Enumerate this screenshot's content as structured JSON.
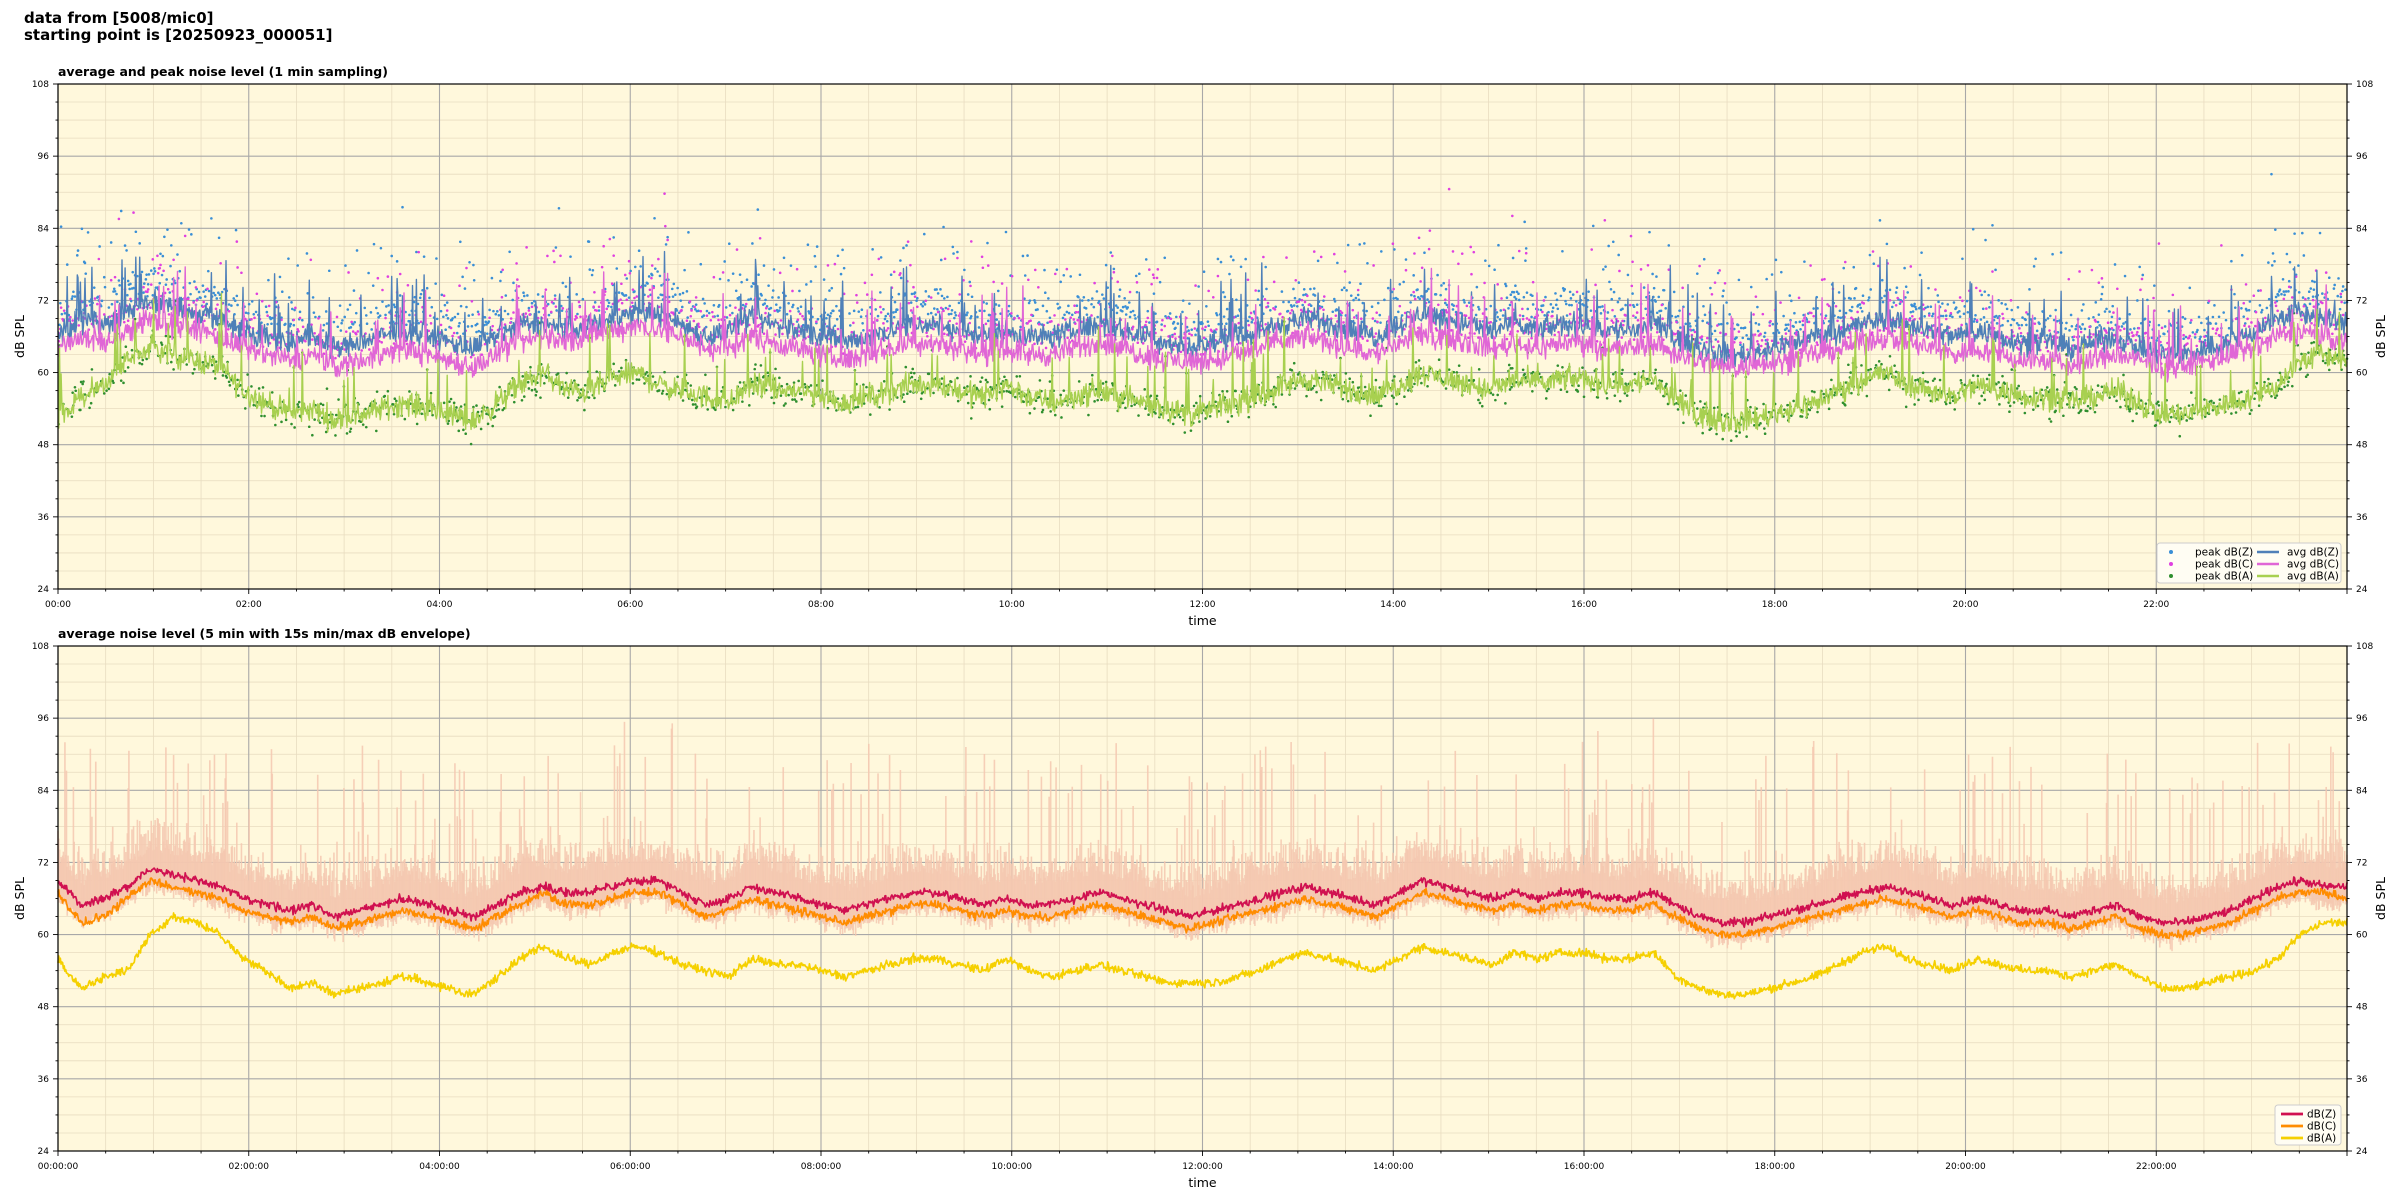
{
  "header": {
    "line1": "data from [5008/mic0]",
    "line2": "starting point is [20250923_000051]"
  },
  "chart_data": [
    {
      "type": "line",
      "title": "average and peak noise level (1 min sampling)",
      "xlabel": "time",
      "ylabel": "dB SPL",
      "ylim": [
        24,
        108
      ],
      "xlim_hours": [
        0,
        24
      ],
      "x_tick_labels": [
        "00:00",
        "02:00",
        "04:00",
        "06:00",
        "08:00",
        "10:00",
        "12:00",
        "14:00",
        "16:00",
        "18:00",
        "20:00",
        "22:00"
      ],
      "y_ticks": [
        24,
        36,
        48,
        60,
        72,
        84,
        96,
        108
      ],
      "grid": true,
      "legend_position": "bottom-right",
      "sampling_minutes": 1,
      "series_style": "avg lines plus peak dots",
      "series": [
        {
          "name": "peak dB(Z)",
          "kind": "scatter",
          "color": "#3a8fd6"
        },
        {
          "name": "peak dB(C)",
          "kind": "scatter",
          "color": "#e040e0"
        },
        {
          "name": "peak dB(A)",
          "kind": "scatter",
          "color": "#2f8f2f"
        },
        {
          "name": "avg dB(Z)",
          "kind": "line",
          "color": "#4f80b8",
          "values_half_hourly": [
            66,
            69,
            68,
            70,
            72,
            71,
            70,
            69,
            67,
            66,
            65,
            66,
            64,
            65,
            66,
            67,
            66,
            65,
            64,
            66,
            68,
            68,
            67,
            68,
            69,
            70,
            70,
            68,
            66,
            67,
            69,
            68,
            67,
            66,
            65,
            66,
            67,
            68,
            68,
            67,
            66,
            67,
            66,
            66,
            67,
            68,
            67,
            66,
            65,
            64,
            65,
            66,
            67,
            68,
            69,
            68,
            67,
            66,
            68,
            70,
            69,
            68,
            67,
            68,
            67,
            68,
            68,
            67,
            67,
            68,
            66,
            64,
            63,
            63,
            64,
            65,
            66,
            67,
            68,
            69,
            68,
            67,
            66,
            67,
            66,
            65,
            65,
            64,
            65,
            66,
            64,
            63,
            63,
            64,
            65,
            67,
            69,
            70,
            69,
            68
          ]
        },
        {
          "name": "avg dB(C)",
          "kind": "line",
          "color": "#e066d6",
          "values_half_hourly": [
            64,
            66,
            65,
            67,
            69,
            68,
            67,
            66,
            64,
            63,
            62,
            63,
            61,
            62,
            63,
            64,
            63,
            62,
            61,
            63,
            65,
            66,
            65,
            66,
            67,
            68,
            67,
            66,
            64,
            64,
            66,
            65,
            64,
            63,
            62,
            63,
            64,
            65,
            65,
            64,
            63,
            64,
            63,
            63,
            64,
            65,
            64,
            63,
            62,
            62,
            62,
            63,
            64,
            65,
            66,
            65,
            64,
            63,
            65,
            66,
            66,
            65,
            64,
            65,
            64,
            65,
            65,
            64,
            64,
            65,
            63,
            62,
            61,
            61,
            62,
            62,
            63,
            64,
            65,
            66,
            65,
            64,
            63,
            64,
            63,
            62,
            62,
            61,
            62,
            63,
            62,
            61,
            61,
            62,
            63,
            64,
            66,
            67,
            66,
            65
          ]
        },
        {
          "name": "avg dB(A)",
          "kind": "line",
          "color": "#a8d050",
          "values_half_hourly": [
            53,
            56,
            58,
            62,
            64,
            63,
            62,
            61,
            57,
            55,
            53,
            54,
            52,
            53,
            54,
            55,
            54,
            53,
            52,
            55,
            58,
            60,
            57,
            57,
            59,
            60,
            58,
            57,
            56,
            55,
            58,
            57,
            57,
            56,
            55,
            56,
            57,
            58,
            58,
            57,
            56,
            58,
            56,
            55,
            56,
            57,
            56,
            55,
            54,
            53,
            54,
            55,
            56,
            58,
            59,
            58,
            57,
            56,
            58,
            60,
            59,
            58,
            57,
            59,
            58,
            59,
            59,
            58,
            58,
            59,
            55,
            53,
            52,
            52,
            53,
            54,
            55,
            57,
            59,
            60,
            58,
            57,
            56,
            58,
            57,
            56,
            56,
            55,
            56,
            57,
            55,
            53,
            53,
            54,
            55,
            56,
            58,
            62,
            63,
            62
          ]
        }
      ]
    },
    {
      "type": "line",
      "title": "average noise level (5 min with 15s min/max dB envelope)",
      "xlabel": "time",
      "ylabel": "dB SPL",
      "ylim": [
        24,
        108
      ],
      "xlim_hours": [
        0,
        24
      ],
      "x_tick_labels": [
        "00:00:00",
        "02:00:00",
        "04:00:00",
        "06:00:00",
        "08:00:00",
        "10:00:00",
        "12:00:00",
        "14:00:00",
        "16:00:00",
        "18:00:00",
        "20:00:00",
        "22:00:00"
      ],
      "y_ticks": [
        24,
        36,
        48,
        60,
        72,
        84,
        96,
        108
      ],
      "grid": true,
      "legend_position": "bottom-right",
      "envelope_color": "#f5c8b0",
      "series": [
        {
          "name": "dB(Z)",
          "color": "#d01050",
          "values_half_hourly": [
            69,
            65,
            66,
            68,
            71,
            70,
            69,
            68,
            66,
            65,
            64,
            65,
            63,
            64,
            65,
            66,
            65,
            64,
            63,
            65,
            67,
            68,
            67,
            67,
            68,
            69,
            69,
            67,
            65,
            66,
            68,
            67,
            66,
            65,
            64,
            65,
            66,
            67,
            67,
            66,
            65,
            66,
            65,
            65,
            66,
            67,
            66,
            65,
            64,
            63,
            64,
            65,
            66,
            67,
            68,
            67,
            66,
            65,
            67,
            69,
            68,
            67,
            66,
            67,
            66,
            67,
            67,
            66,
            66,
            67,
            65,
            63,
            62,
            62,
            63,
            64,
            65,
            66,
            67,
            68,
            67,
            66,
            65,
            66,
            65,
            64,
            64,
            63,
            64,
            65,
            63,
            62,
            62,
            63,
            64,
            66,
            68,
            69,
            68,
            68
          ]
        },
        {
          "name": "dB(C)",
          "color": "#ff8c00",
          "values_half_hourly": [
            67,
            62,
            63,
            66,
            69,
            68,
            67,
            66,
            64,
            63,
            62,
            63,
            61,
            62,
            63,
            64,
            63,
            62,
            61,
            63,
            65,
            67,
            65,
            65,
            66,
            67,
            67,
            65,
            63,
            64,
            66,
            65,
            64,
            63,
            62,
            63,
            64,
            65,
            65,
            64,
            63,
            64,
            63,
            63,
            64,
            65,
            64,
            63,
            62,
            61,
            62,
            63,
            64,
            65,
            66,
            65,
            64,
            63,
            65,
            67,
            66,
            65,
            64,
            65,
            64,
            65,
            65,
            64,
            64,
            65,
            63,
            61,
            60,
            60,
            61,
            62,
            63,
            64,
            65,
            66,
            65,
            64,
            63,
            64,
            63,
            62,
            62,
            61,
            62,
            63,
            61,
            60,
            60,
            61,
            62,
            64,
            66,
            67,
            67,
            66
          ]
        },
        {
          "name": "dB(A)",
          "color": "#f5d000",
          "values_half_hourly": [
            56,
            51,
            53,
            54,
            60,
            63,
            62,
            60,
            56,
            54,
            51,
            52,
            50,
            51,
            52,
            53,
            52,
            51,
            50,
            53,
            56,
            58,
            56,
            55,
            57,
            58,
            57,
            55,
            54,
            53,
            56,
            55,
            55,
            54,
            53,
            54,
            55,
            56,
            56,
            55,
            54,
            56,
            54,
            53,
            54,
            55,
            54,
            53,
            52,
            52,
            52,
            53,
            54,
            56,
            57,
            56,
            55,
            54,
            56,
            58,
            57,
            56,
            55,
            57,
            56,
            57,
            57,
            56,
            56,
            57,
            53,
            51,
            50,
            50,
            51,
            52,
            53,
            55,
            57,
            58,
            56,
            55,
            54,
            56,
            55,
            54,
            54,
            53,
            54,
            55,
            53,
            51,
            51,
            52,
            53,
            54,
            56,
            60,
            62,
            62
          ]
        }
      ]
    }
  ]
}
